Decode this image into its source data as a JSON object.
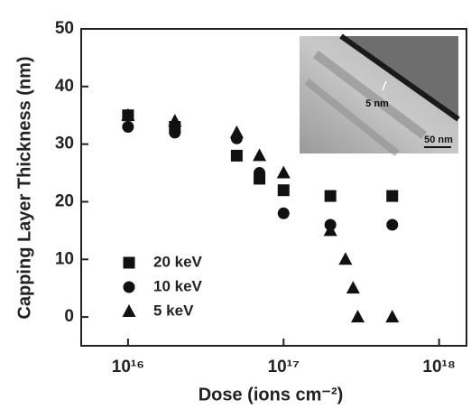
{
  "chart_data": {
    "type": "scatter",
    "xlabel": "Dose (ions cm⁻²)",
    "ylabel": "Capping Layer Thickness (nm)",
    "xscale": "log",
    "xlim": [
      5000000000000000.0,
      1.5e+18
    ],
    "ylim": [
      -5,
      50
    ],
    "xticks": [
      {
        "value": 1e+16,
        "label": "10¹⁶"
      },
      {
        "value": 1e+17,
        "label": "10¹⁷"
      },
      {
        "value": 1e+18,
        "label": "10¹⁸"
      }
    ],
    "yticks": [
      0,
      10,
      20,
      30,
      40,
      50
    ],
    "legend": "lower left",
    "annotations": [
      "5 nm",
      "50 nm"
    ],
    "series": [
      {
        "name": "20 keV",
        "color": "#111111",
        "marker": "square",
        "x": [
          1e+16,
          2e+16,
          5e+16,
          7e+16,
          1e+17,
          2e+17,
          5e+17
        ],
        "values": [
          35,
          33,
          28,
          24,
          22,
          21,
          21
        ]
      },
      {
        "name": "10 keV",
        "color": "#111111",
        "marker": "circle",
        "x": [
          1e+16,
          2e+16,
          5e+16,
          7e+16,
          1e+17,
          2e+17,
          5e+17
        ],
        "values": [
          33,
          32,
          31,
          25,
          18,
          16,
          16
        ]
      },
      {
        "name": "5 keV",
        "color": "#111111",
        "marker": "triangle",
        "x": [
          1e+16,
          2e+16,
          5e+16,
          7e+16,
          1e+17,
          2e+17,
          2.5e+17,
          2.8e+17,
          3e+17,
          5e+17
        ],
        "values": [
          35,
          34,
          32,
          28,
          25,
          15,
          10,
          5,
          0,
          0
        ]
      }
    ]
  }
}
